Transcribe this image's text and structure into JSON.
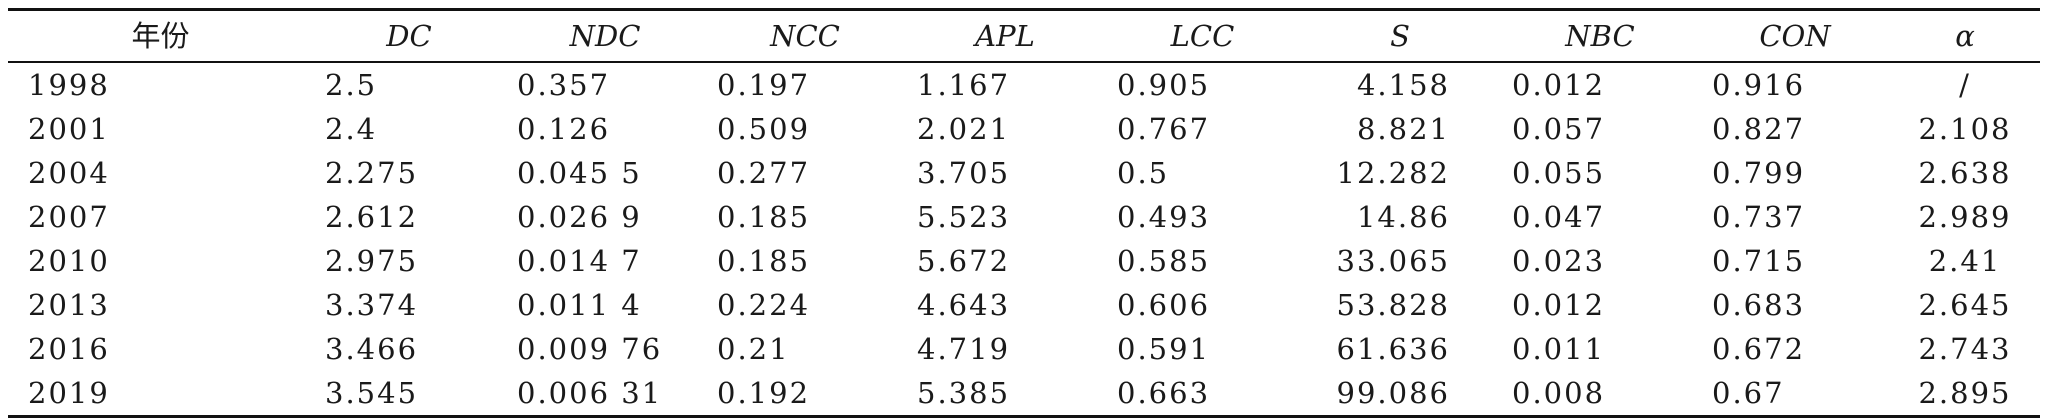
{
  "table": {
    "headers": [
      "年份",
      "DC",
      "NDC",
      "NCC",
      "APL",
      "LCC",
      "S",
      "NBC",
      "CON",
      "α"
    ],
    "rows": [
      [
        "1998",
        "2.5",
        "0.357",
        "0.197",
        "1.167",
        "0.905",
        "4.158",
        "0.012",
        "0.916",
        "/"
      ],
      [
        "2001",
        "2.4",
        "0.126",
        "0.509",
        "2.021",
        "0.767",
        "8.821",
        "0.057",
        "0.827",
        "2.108"
      ],
      [
        "2004",
        "2.275",
        "0.045 5",
        "0.277",
        "3.705",
        "0.5",
        "12.282",
        "0.055",
        "0.799",
        "2.638"
      ],
      [
        "2007",
        "2.612",
        "0.026 9",
        "0.185",
        "5.523",
        "0.493",
        "14.86",
        "0.047",
        "0.737",
        "2.989"
      ],
      [
        "2010",
        "2.975",
        "0.014 7",
        "0.185",
        "5.672",
        "0.585",
        "33.065",
        "0.023",
        "0.715",
        "2.41"
      ],
      [
        "2013",
        "3.374",
        "0.011 4",
        "0.224",
        "4.643",
        "0.606",
        "53.828",
        "0.012",
        "0.683",
        "2.645"
      ],
      [
        "2016",
        "3.466",
        "0.009 76",
        "0.21",
        "4.719",
        "0.591",
        "61.636",
        "0.011",
        "0.672",
        "2.743"
      ],
      [
        "2019",
        "3.545",
        "0.006 31",
        "0.192",
        "5.385",
        "0.663",
        "99.086",
        "0.008",
        "0.67",
        "2.895"
      ]
    ]
  }
}
